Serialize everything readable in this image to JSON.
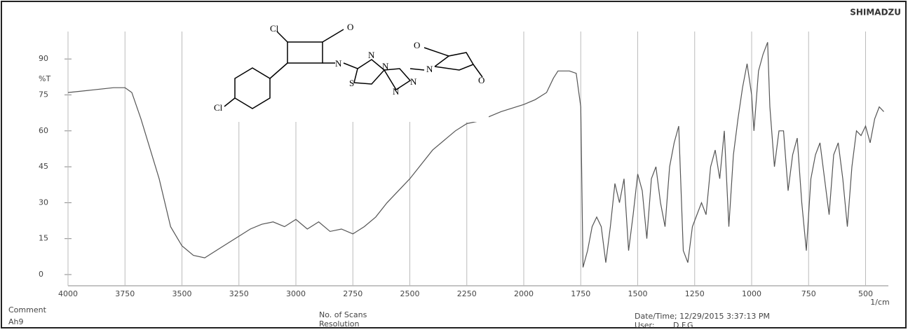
{
  "header": {
    "brand": "SHIMADZU"
  },
  "chart_data": {
    "type": "line",
    "ylabel": "%T",
    "xunit": "1/cm",
    "structure_labels": [
      "Cl",
      "O",
      "N",
      "N",
      "N",
      "S",
      "N",
      "N",
      "O",
      "N",
      "O",
      "Cl"
    ],
    "x": [
      4000,
      3900,
      3800,
      3750,
      3720,
      3680,
      3600,
      3550,
      3500,
      3450,
      3400,
      3350,
      3300,
      3250,
      3200,
      3150,
      3100,
      3050,
      3000,
      2950,
      2900,
      2850,
      2800,
      2750,
      2700,
      2650,
      2600,
      2500,
      2400,
      2300,
      2250,
      2200,
      2100,
      2000,
      1950,
      1900,
      1870,
      1850,
      1800,
      1770,
      1750,
      1740,
      1720,
      1700,
      1680,
      1660,
      1640,
      1620,
      1600,
      1580,
      1560,
      1540,
      1520,
      1500,
      1480,
      1460,
      1440,
      1420,
      1400,
      1380,
      1360,
      1340,
      1320,
      1300,
      1280,
      1260,
      1240,
      1220,
      1200,
      1180,
      1160,
      1140,
      1120,
      1100,
      1080,
      1060,
      1040,
      1020,
      1000,
      990,
      970,
      950,
      930,
      920,
      900,
      880,
      860,
      840,
      820,
      800,
      780,
      760,
      740,
      720,
      700,
      680,
      660,
      640,
      620,
      600,
      580,
      560,
      540,
      520,
      500,
      480,
      460,
      440,
      420
    ],
    "series": [
      {
        "color": "#555555",
        "values": [
          76,
          77,
          78,
          78,
          76,
          65,
          40,
          20,
          12,
          8,
          7,
          10,
          13,
          16,
          19,
          21,
          22,
          20,
          23,
          19,
          22,
          18,
          19,
          17,
          20,
          24,
          30,
          40,
          52,
          60,
          63,
          64,
          68,
          71,
          73,
          76,
          82,
          85,
          85,
          84,
          70,
          3,
          10,
          20,
          24,
          20,
          5,
          20,
          38,
          30,
          40,
          10,
          25,
          42,
          35,
          15,
          40,
          45,
          30,
          20,
          45,
          55,
          62,
          10,
          5,
          20,
          25,
          30,
          25,
          45,
          52,
          40,
          60,
          20,
          50,
          65,
          78,
          88,
          75,
          60,
          85,
          92,
          97,
          70,
          45,
          60,
          60,
          35,
          50,
          57,
          30,
          10,
          40,
          50,
          55,
          40,
          25,
          50,
          55,
          40,
          20,
          45,
          60,
          58,
          62,
          55,
          65,
          70,
          68
        ]
      }
    ],
    "xlim": [
      4000,
      400
    ],
    "xticks": [
      4000,
      3750,
      3500,
      3250,
      3000,
      2750,
      2500,
      2250,
      2000,
      1750,
      1500,
      1250,
      1000,
      750,
      500
    ],
    "ylim": [
      0,
      100
    ],
    "yticks": [
      0,
      15,
      30,
      45,
      60,
      75,
      90
    ],
    "grid": true
  },
  "footer": {
    "comment_label": "Comment",
    "comment": "Ah9",
    "scans_label": "No. of Scans",
    "resolution_label": "Resolution",
    "datetime": "Date/Time; 12/29/2015 3:37:13 PM",
    "user_label": "User:",
    "user": "D.F.G"
  }
}
